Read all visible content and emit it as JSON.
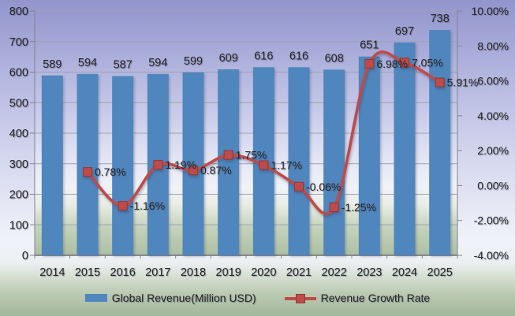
{
  "chart_data": {
    "type": "bar",
    "combo": "bar+line",
    "title": "",
    "categories": [
      "2014",
      "2015",
      "2016",
      "2017",
      "2018",
      "2019",
      "2020",
      "2021",
      "2022",
      "2023",
      "2024",
      "2025"
    ],
    "series": [
      {
        "name": "Global Revenue(Million USD)",
        "type": "bar",
        "axis": "left",
        "color": "#4F86BE",
        "values": [
          589,
          594,
          587,
          594,
          599,
          609,
          616,
          616,
          608,
          651,
          697,
          738
        ],
        "labels": [
          "589",
          "594",
          "587",
          "594",
          "599",
          "609",
          "616",
          "616",
          "608",
          "651",
          "697",
          "738"
        ]
      },
      {
        "name": "Revenue Growth Rate",
        "type": "line",
        "axis": "right",
        "smooth": true,
        "color": "#BE4B48",
        "marker_border": "#943634",
        "values": [
          null,
          0.78,
          -1.16,
          1.19,
          0.87,
          1.75,
          1.17,
          -0.06,
          -1.25,
          6.98,
          7.05,
          5.91
        ],
        "labels": [
          null,
          "0.78%",
          "-1.16%",
          "1.19%",
          "0.87%",
          "1.75%",
          "1.17%",
          "-0.06%",
          "-1.25%",
          "6.98%",
          "7.05%",
          "5.91%"
        ]
      }
    ],
    "left_axis": {
      "min": 0,
      "max": 800,
      "step": 100,
      "tick_labels": [
        "0",
        "100",
        "200",
        "300",
        "400",
        "500",
        "600",
        "700",
        "800"
      ]
    },
    "right_axis": {
      "min": -4,
      "max": 10,
      "step": 2,
      "tick_labels": [
        "-4.00%",
        "-2.00%",
        "0.00%",
        "2.00%",
        "4.00%",
        "6.00%",
        "8.00%",
        "10.00%"
      ]
    },
    "grid": "horizontal",
    "legend_position": "bottom",
    "legend": [
      "Global Revenue(Million USD)",
      "Revenue Growth Rate"
    ]
  },
  "styles": {
    "bar_color": "#4F86BE",
    "line_color": "#BE4B48",
    "marker_border_color": "#943634",
    "text_color": "#262626",
    "gridline_color": "#9EA1B0",
    "axis_color": "#83838E",
    "x_axis_line_color": "#6E6E78"
  }
}
